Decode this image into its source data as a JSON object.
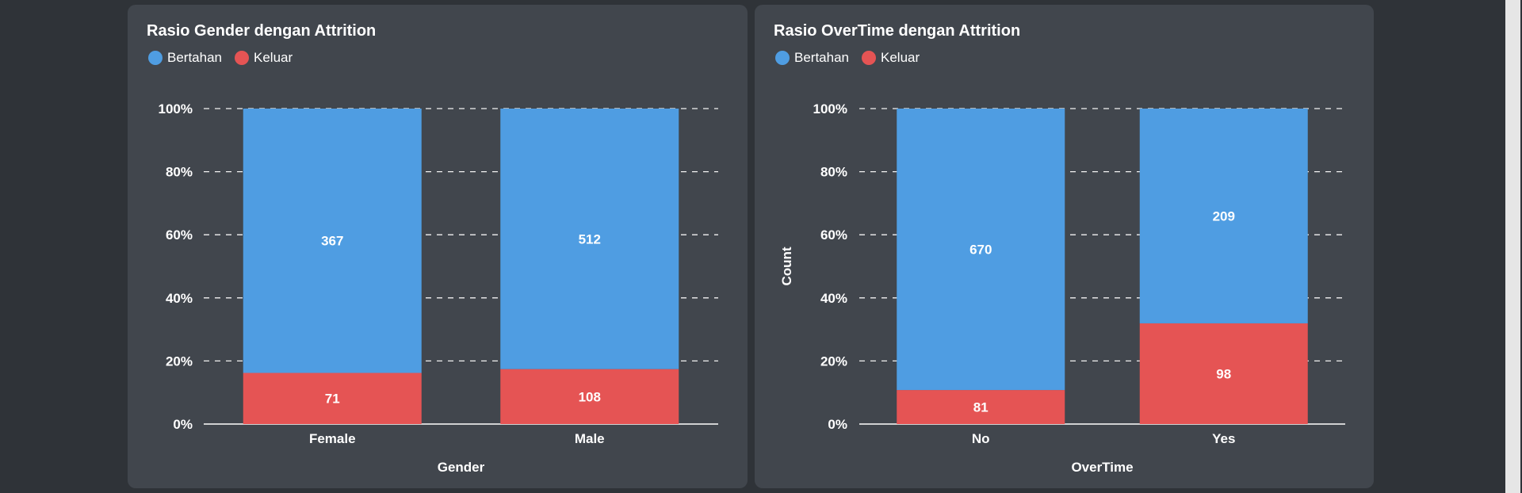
{
  "colors": {
    "bertahan": "#4f9de2",
    "keluar": "#e55454"
  },
  "chart_data": [
    {
      "id": "gender",
      "type": "bar",
      "stacked": true,
      "normalized": true,
      "title": "Rasio Gender dengan Attrition",
      "xlabel": "Gender",
      "ylabel": "",
      "ylim": [
        0,
        100
      ],
      "yticks": [
        "0%",
        "20%",
        "40%",
        "60%",
        "80%",
        "100%"
      ],
      "grid": true,
      "legend": "top-left",
      "categories": [
        "Female",
        "Male"
      ],
      "series": [
        {
          "name": "Bertahan",
          "color": "#4f9de2",
          "values": [
            367,
            512
          ]
        },
        {
          "name": "Keluar",
          "color": "#e55454",
          "values": [
            71,
            108
          ]
        }
      ]
    },
    {
      "id": "overtime",
      "type": "bar",
      "stacked": true,
      "normalized": true,
      "title": "Rasio OverTime dengan Attrition",
      "xlabel": "OverTime",
      "ylabel": "Count",
      "ylim": [
        0,
        100
      ],
      "yticks": [
        "0%",
        "20%",
        "40%",
        "60%",
        "80%",
        "100%"
      ],
      "grid": true,
      "legend": "top-left",
      "categories": [
        "No",
        "Yes"
      ],
      "series": [
        {
          "name": "Bertahan",
          "color": "#4f9de2",
          "values": [
            670,
            209
          ]
        },
        {
          "name": "Keluar",
          "color": "#e55454",
          "values": [
            81,
            98
          ]
        }
      ]
    }
  ]
}
